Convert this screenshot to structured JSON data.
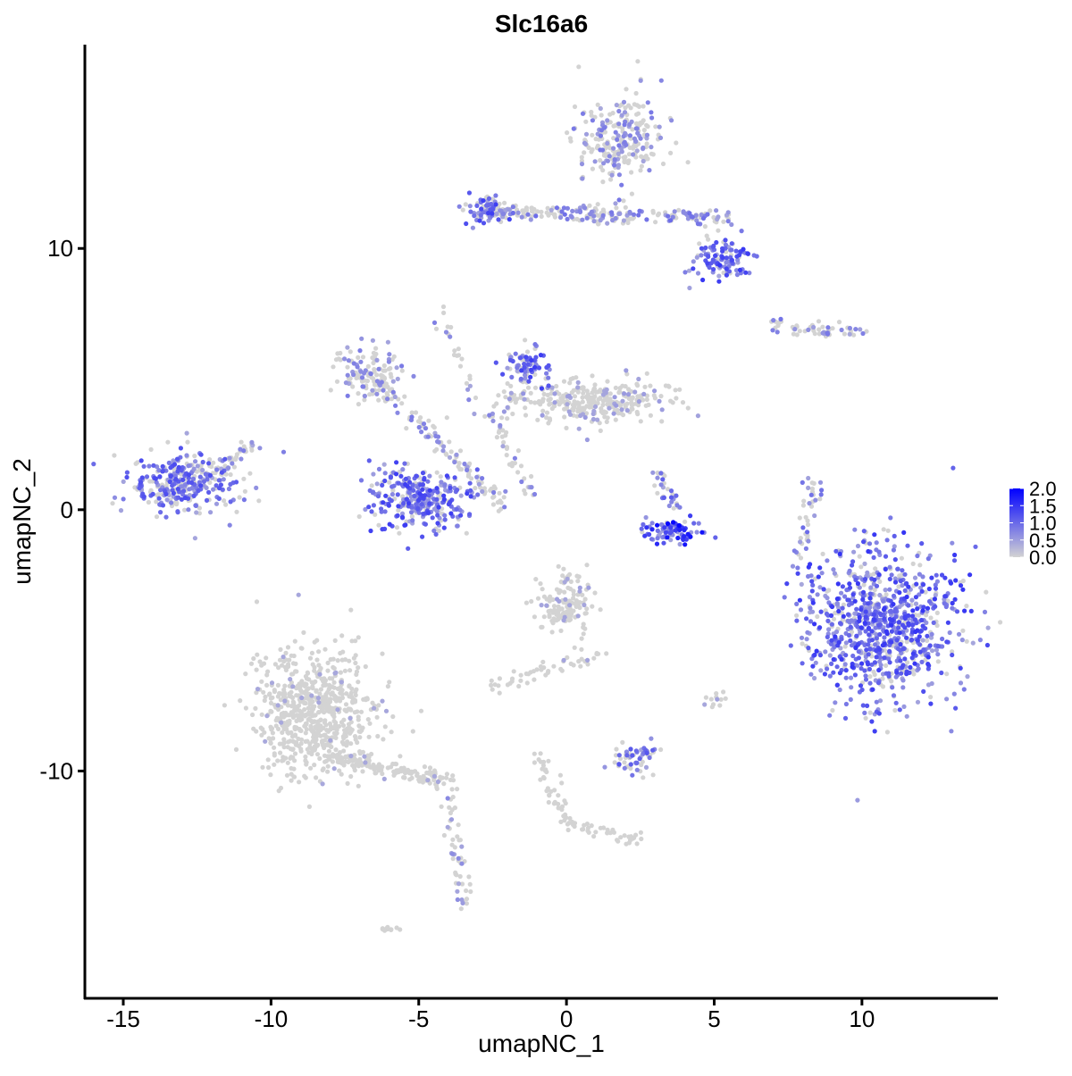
{
  "chart_data": {
    "type": "scatter",
    "title": "Slc16a6",
    "xlabel": "umapNC_1",
    "ylabel": "umapNC_2",
    "xlim": [
      -16.3,
      14.6
    ],
    "ylim": [
      -18.7,
      17.8
    ],
    "xticks": [
      -15,
      -10,
      -5,
      0,
      5,
      10
    ],
    "yticks": [
      -10,
      0,
      10
    ],
    "xtick_labels": [
      "-15",
      "-10",
      "-5",
      "0",
      "5",
      "10"
    ],
    "ytick_labels": [
      "-10",
      "0",
      "10"
    ],
    "grid": false,
    "color_scale": {
      "low": "#D3D3D3",
      "high": "#0000FF",
      "range": [
        0,
        2.0
      ]
    },
    "legend": {
      "position": "right",
      "ticks": [
        "2.0",
        "1.5",
        "1.0",
        "0.5",
        "0.0"
      ],
      "tick_values": [
        2.0,
        1.5,
        1.0,
        0.5,
        0.0
      ]
    },
    "clusters": [
      {
        "center": [
          -13,
          1
        ],
        "spread": [
          0.9,
          0.6
        ],
        "n": 320,
        "mean_expr": 0.7
      },
      {
        "from": [
          -12,
          1.2
        ],
        "to": [
          -10.6,
          2.6
        ],
        "n": 40,
        "mean_expr": 0.4
      },
      {
        "center": [
          -6.7,
          5.2
        ],
        "spread": [
          0.6,
          0.5
        ],
        "n": 120,
        "mean_expr": 0.35
      },
      {
        "center": [
          -5,
          0.4
        ],
        "spread": [
          0.8,
          0.6
        ],
        "n": 300,
        "mean_expr": 0.8
      },
      {
        "from": [
          -6.5,
          5
        ],
        "to": [
          -2,
          0
        ],
        "n": 120,
        "mean_expr": 0.35
      },
      {
        "from": [
          -4.4,
          7.5
        ],
        "to": [
          -1.2,
          0.6
        ],
        "n": 60,
        "mean_expr": 0.3
      },
      {
        "center": [
          0.6,
          4.2
        ],
        "spread": [
          1.4,
          0.45
        ],
        "n": 330,
        "mean_expr": 0.12
      },
      {
        "center": [
          -1.3,
          5.6
        ],
        "spread": [
          0.4,
          0.5
        ],
        "n": 80,
        "mean_expr": 0.8
      },
      {
        "center": [
          1.8,
          14.1
        ],
        "spread": [
          0.7,
          0.8
        ],
        "n": 250,
        "mean_expr": 0.35
      },
      {
        "from": [
          -3,
          11.4
        ],
        "to": [
          5.7,
          11.2
        ],
        "n": 220,
        "mean_expr": 0.45
      },
      {
        "center": [
          -2.7,
          11.5
        ],
        "spread": [
          0.4,
          0.3
        ],
        "n": 60,
        "mean_expr": 0.8
      },
      {
        "center": [
          5.3,
          9.6
        ],
        "spread": [
          0.5,
          0.4
        ],
        "n": 110,
        "mean_expr": 0.85
      },
      {
        "from": [
          6.8,
          7.0
        ],
        "to": [
          10,
          6.8
        ],
        "n": 60,
        "mean_expr": 0.4
      },
      {
        "center": [
          10.6,
          -4.4
        ],
        "spread": [
          1.3,
          1.4
        ],
        "n": 900,
        "mean_expr": 0.85
      },
      {
        "center": [
          3.6,
          -0.8
        ],
        "spread": [
          0.6,
          0.2
        ],
        "n": 90,
        "mean_expr": 1.2
      },
      {
        "from": [
          3.0,
          1.5
        ],
        "to": [
          3.8,
          0
        ],
        "n": 30,
        "mean_expr": 0.6
      },
      {
        "center": [
          0,
          -3.6
        ],
        "spread": [
          0.5,
          0.6
        ],
        "n": 150,
        "mean_expr": 0.08
      },
      {
        "from": [
          -2.7,
          -6.8
        ],
        "to": [
          1.2,
          -5.5
        ],
        "n": 50,
        "mean_expr": 0.05
      },
      {
        "center": [
          -8.5,
          -7.8
        ],
        "spread": [
          1.0,
          1.2
        ],
        "n": 700,
        "mean_expr": 0.02
      },
      {
        "from": [
          -8,
          -9.5
        ],
        "to": [
          -3.9,
          -10.4
        ],
        "n": 150,
        "mean_expr": 0.02
      },
      {
        "from": [
          -4,
          -11
        ],
        "to": [
          -3.5,
          -15.3
        ],
        "n": 50,
        "mean_expr": 0.25
      },
      {
        "center": [
          2.4,
          -9.5
        ],
        "spread": [
          0.4,
          0.3
        ],
        "n": 60,
        "mean_expr": 0.6
      },
      {
        "from": [
          -1,
          -9.3
        ],
        "to": [
          0,
          -12
        ],
        "n": 40,
        "mean_expr": 0.02
      },
      {
        "from": [
          0,
          -12
        ],
        "to": [
          2.5,
          -12.7
        ],
        "n": 40,
        "mean_expr": 0.02
      },
      {
        "from": [
          7.9,
          -2
        ],
        "to": [
          8.4,
          1.2
        ],
        "n": 40,
        "mean_expr": 0.45
      },
      {
        "center": [
          -6,
          -16
        ],
        "spread": [
          0.15,
          0.1
        ],
        "n": 10,
        "mean_expr": 0.0
      },
      {
        "center": [
          5,
          -7.3
        ],
        "spread": [
          0.15,
          0.15
        ],
        "n": 12,
        "mean_expr": 0.1
      }
    ]
  }
}
